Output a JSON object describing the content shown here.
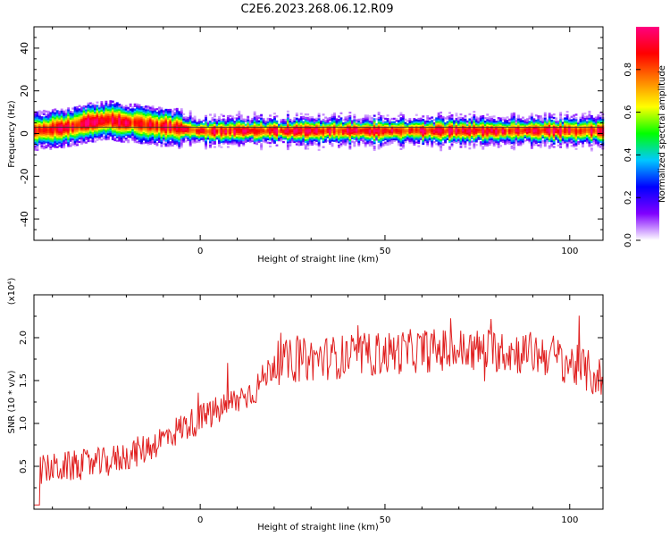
{
  "title": "C2E6.2023.268.06.12.R09",
  "chart_data": [
    {
      "type": "heatmap",
      "xlabel": "Height of straight line (km)",
      "ylabel": "Frequency (Hz)",
      "xlim": [
        -45,
        109
      ],
      "ylim": [
        -50,
        50
      ],
      "xticks": [
        0,
        50,
        100
      ],
      "yticks": [
        -40,
        -20,
        0,
        20,
        40
      ],
      "ridge": {
        "x": [
          -45,
          -40,
          -35,
          -30,
          -25,
          -20,
          -15,
          -10,
          -5,
          0,
          5,
          10,
          20,
          40,
          60,
          80,
          100,
          109
        ],
        "y": [
          1,
          2,
          3,
          5,
          6,
          5,
          4,
          3,
          2,
          1,
          1,
          1,
          1,
          1,
          1,
          1,
          1,
          1
        ]
      },
      "colorbar": {
        "label": "Normalized spectral amplitude",
        "range": [
          0,
          1
        ],
        "ticks": [
          "0.0",
          "0.2",
          "0.4",
          "0.6",
          "0.8"
        ],
        "colors": [
          "#ffffff",
          "#8000ff",
          "#0000ff",
          "#00c8ff",
          "#00ff00",
          "#ffff00",
          "#ff8000",
          "#ff0000",
          "#ff0080"
        ]
      }
    },
    {
      "type": "line",
      "xlabel": "Height of straight line (km)",
      "ylabel": "SNR (10 * v/v)",
      "scale_label": "(x10⁴)",
      "xlim": [
        -45,
        109
      ],
      "ylim": [
        0,
        2.5
      ],
      "xticks": [
        0,
        50,
        100
      ],
      "yticks": [
        "0.5",
        "1.0",
        "1.5",
        "2.0"
      ],
      "color": "#e02020",
      "trend": {
        "x": [
          -45,
          -35,
          -25,
          -15,
          -5,
          5,
          15,
          20,
          30,
          45,
          60,
          80,
          95,
          105,
          109
        ],
        "y": [
          0.45,
          0.5,
          0.55,
          0.7,
          0.95,
          1.15,
          1.4,
          1.7,
          1.75,
          1.8,
          1.85,
          1.85,
          1.8,
          1.6,
          1.5
        ]
      }
    }
  ]
}
